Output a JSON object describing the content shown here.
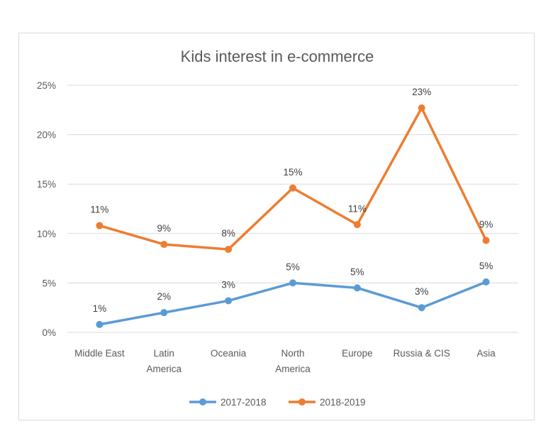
{
  "chart_data": {
    "type": "line",
    "title": "Kids interest in e-commerce",
    "xlabel": "",
    "ylabel": "",
    "categories": [
      [
        "Middle East"
      ],
      [
        "Latin",
        "America"
      ],
      [
        "Oceania"
      ],
      [
        "North",
        "America"
      ],
      [
        "Europe"
      ],
      [
        "Russia & CIS"
      ],
      [
        "Asia"
      ]
    ],
    "ylim": [
      0,
      25
    ],
    "yticks": [
      0,
      5,
      10,
      15,
      20,
      25
    ],
    "ytick_labels": [
      "0%",
      "5%",
      "10%",
      "15%",
      "20%",
      "25%"
    ],
    "grid": true,
    "legend_position": "bottom",
    "series": [
      {
        "name": "2017-2018",
        "color": "#5b9bd5",
        "values": [
          0.8,
          2.0,
          3.2,
          5.0,
          4.5,
          2.5,
          5.1
        ],
        "labels": [
          "1%",
          "2%",
          "3%",
          "5%",
          "5%",
          "3%",
          "5%"
        ]
      },
      {
        "name": "2018-2019",
        "color": "#ed7d31",
        "values": [
          10.8,
          8.9,
          8.4,
          14.6,
          10.9,
          22.7,
          9.3
        ],
        "labels": [
          "11%",
          "9%",
          "8%",
          "15%",
          "11%",
          "23%",
          "9%"
        ]
      }
    ]
  }
}
